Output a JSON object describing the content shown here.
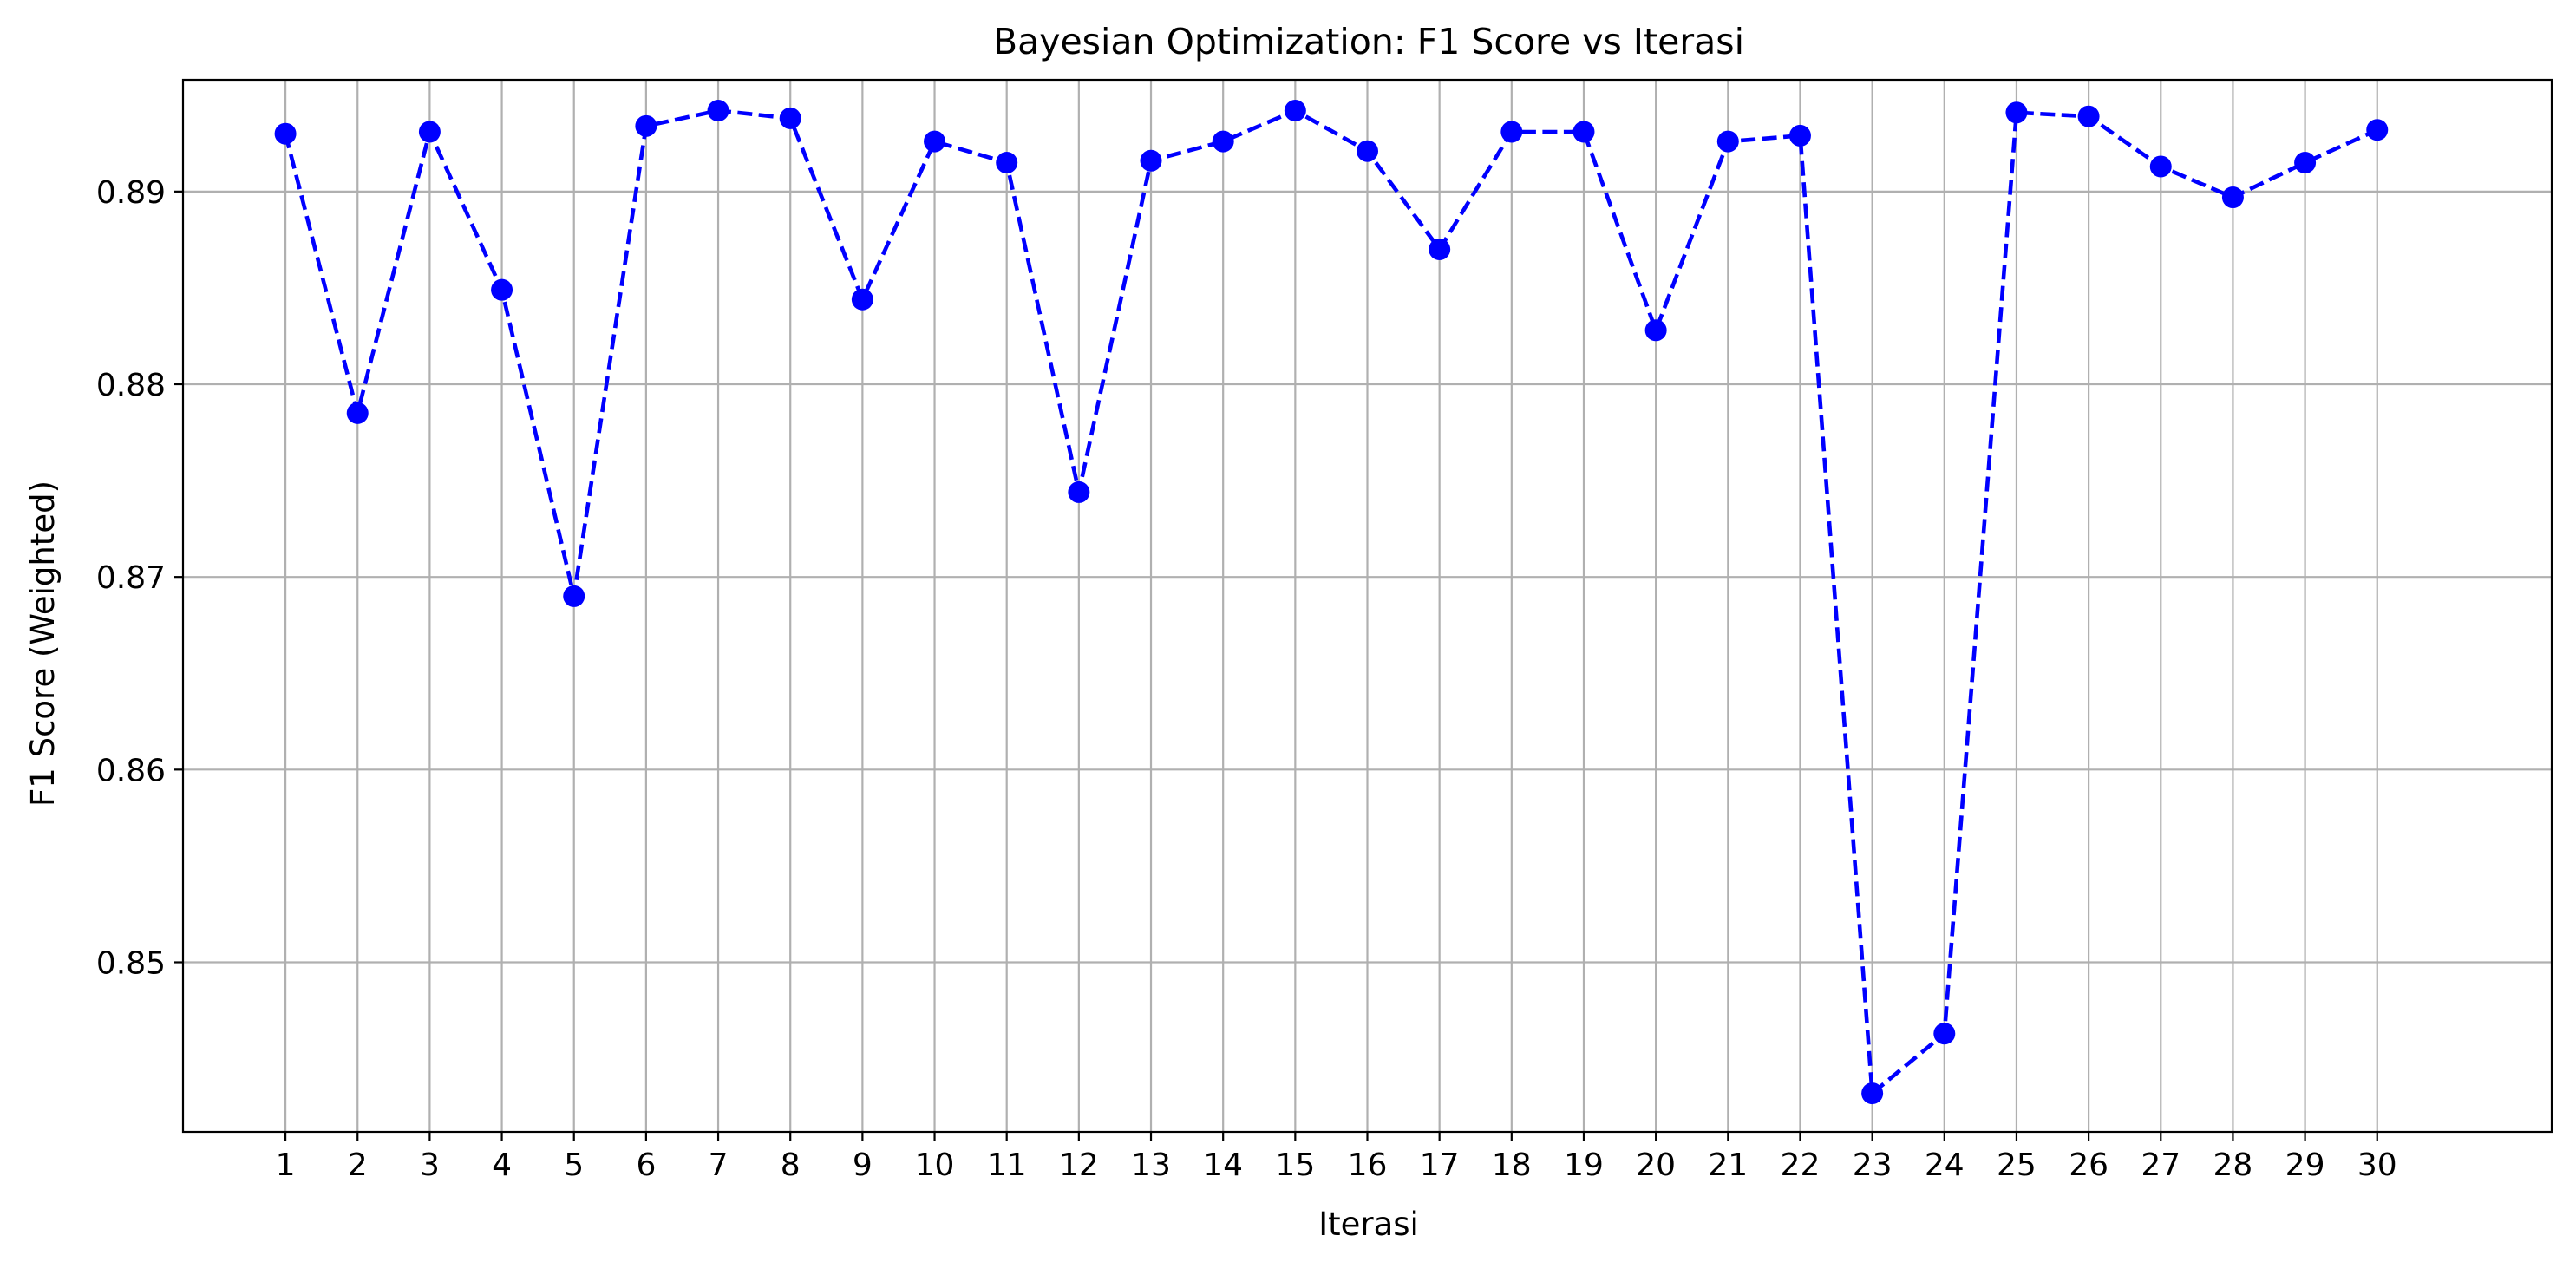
{
  "chart_data": {
    "type": "line",
    "title": "Bayesian Optimization: F1 Score vs Iterasi",
    "xlabel": "Iterasi",
    "ylabel": "F1 Score (Weighted)",
    "x": [
      1,
      2,
      3,
      4,
      5,
      6,
      7,
      8,
      9,
      10,
      11,
      12,
      13,
      14,
      15,
      16,
      17,
      18,
      19,
      20,
      21,
      22,
      23,
      24,
      25,
      26,
      27,
      28,
      29,
      30
    ],
    "xlim": [
      -0.42,
      32.42
    ],
    "ylim": [
      0.8412,
      0.8958
    ],
    "yticks": [
      0.85,
      0.86,
      0.87,
      0.88,
      0.89
    ],
    "ytick_labels": [
      "0.85",
      "0.86",
      "0.87",
      "0.88",
      "0.89"
    ],
    "xtick_labels": [
      "1",
      "2",
      "3",
      "4",
      "5",
      "6",
      "7",
      "8",
      "9",
      "10",
      "11",
      "12",
      "13",
      "14",
      "15",
      "16",
      "17",
      "18",
      "19",
      "20",
      "21",
      "22",
      "23",
      "24",
      "25",
      "26",
      "27",
      "28",
      "29",
      "30"
    ],
    "grid": true,
    "legend": "none",
    "series": [
      {
        "color": "#0000ff",
        "line_style": "dashed",
        "marker": "circle",
        "values": [
          0.893,
          0.8785,
          0.8931,
          0.8849,
          0.869,
          0.8934,
          0.8942,
          0.8938,
          0.8844,
          0.8926,
          0.8915,
          0.8744,
          0.8916,
          0.8926,
          0.8942,
          0.8921,
          0.887,
          0.8931,
          0.8931,
          0.8828,
          0.8926,
          0.8929,
          0.8432,
          0.8463,
          0.8941,
          0.8939,
          0.8913,
          0.8897,
          0.8915,
          0.8932
        ]
      }
    ]
  }
}
